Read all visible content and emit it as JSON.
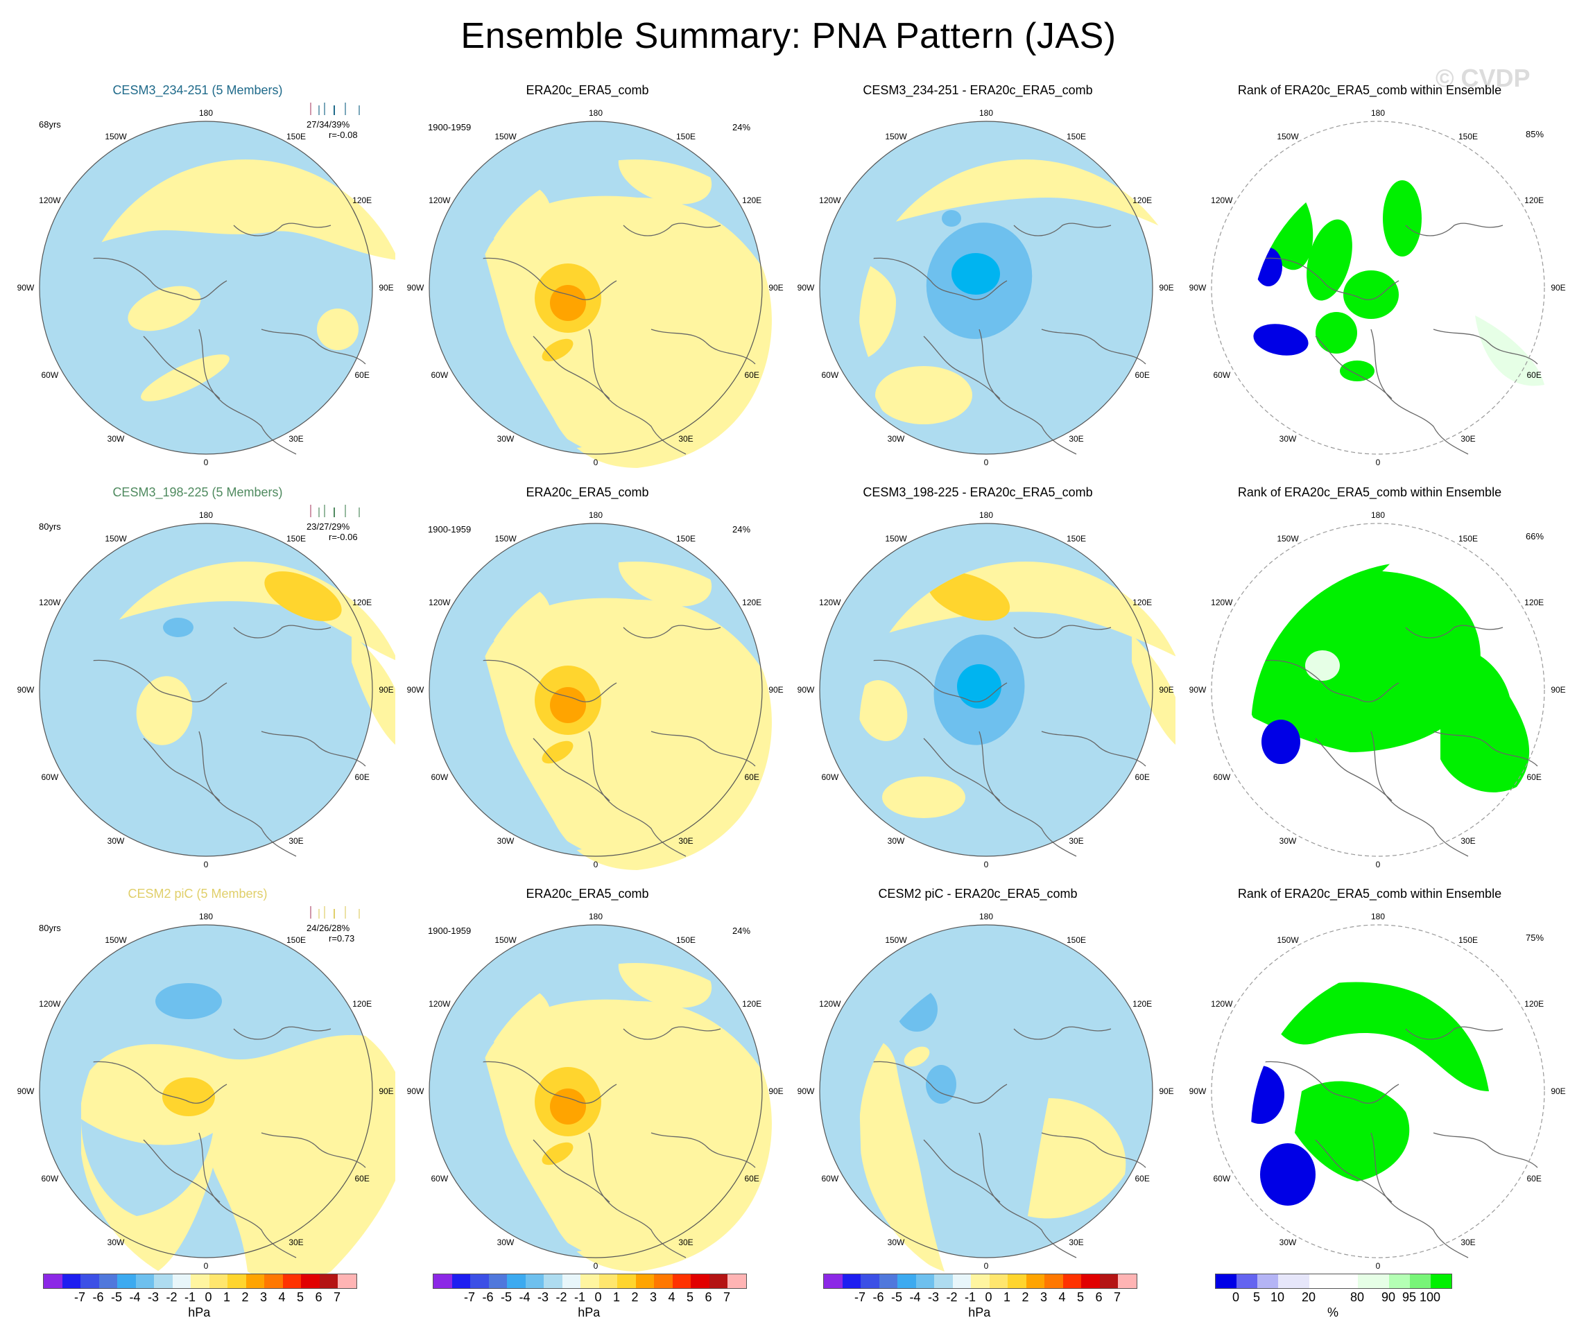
{
  "title": "Ensemble Summary: PNA Pattern (JAS)",
  "watermark": "© CVDP",
  "longitude_labels": [
    "180",
    "150E",
    "120E",
    "90E",
    "60E",
    "30E",
    "0",
    "30W",
    "60W",
    "90W",
    "120W",
    "150W"
  ],
  "rows": [
    {
      "model_title": "CESM3_234-251 (5 Members)",
      "model_title_color": "#1f6a8a",
      "years": "68yrs",
      "stats": "27/34/39%",
      "corr": "r=-0.08",
      "obs_title": "ERA20c_ERA5_comb",
      "obs_period": "1900-1959",
      "obs_pct": "24%",
      "diff_title": "CESM3_234-251 - ERA20c_ERA5_comb",
      "rank_title": "Rank of ERA20c_ERA5_comb within Ensemble",
      "rank_pct": "85%"
    },
    {
      "model_title": "CESM3_198-225 (5 Members)",
      "model_title_color": "#4f8a5f",
      "years": "80yrs",
      "stats": "23/27/29%",
      "corr": "r=-0.06",
      "obs_title": "ERA20c_ERA5_comb",
      "obs_period": "1900-1959",
      "obs_pct": "24%",
      "diff_title": "CESM3_198-225 - ERA20c_ERA5_comb",
      "rank_title": "Rank of ERA20c_ERA5_comb within Ensemble",
      "rank_pct": "66%"
    },
    {
      "model_title": "CESM2 piC (5 Members)",
      "model_title_color": "#e0cf6a",
      "years": "80yrs",
      "stats": "24/26/28%",
      "corr": "r=0.73",
      "obs_title": "ERA20c_ERA5_comb",
      "obs_period": "1900-1959",
      "obs_pct": "24%",
      "diff_title": "CESM2 piC - ERA20c_ERA5_comb",
      "rank_title": "Rank of ERA20c_ERA5_comb within Ensemble",
      "rank_pct": "75%"
    }
  ],
  "colors": {
    "neg_light": "#aedcf0",
    "neg_mid": "#6ec0ee",
    "neg_strong": "#00b4f0",
    "pos_light": "#fff5a0",
    "pos_mid": "#ffd52e",
    "pos_strong": "#ffa400",
    "rank_low": "#0000e6",
    "rank_high": "#00f000",
    "rank_mid_high": "#e6ffe6",
    "coast": "#666666"
  },
  "chart_data": {
    "type": "contour_map_grid",
    "projection": "north polar stereographic",
    "variable": "PNA Pattern sea level pressure anomaly",
    "season": "JAS",
    "units": "hPa",
    "hpa_colorbar": {
      "ticks": [
        "-7",
        "-6",
        "-5",
        "-4",
        "-3",
        "-2",
        "-1",
        "0",
        "1",
        "2",
        "3",
        "4",
        "5",
        "6",
        "7"
      ],
      "units": "hPa",
      "colors": [
        "#8c28e6",
        "#1e1ef0",
        "#3c50e6",
        "#5078dc",
        "#3caaf0",
        "#6ec0ee",
        "#aedcf0",
        "#e8f6fa",
        "#fff5a0",
        "#ffe66e",
        "#ffd52e",
        "#ffa400",
        "#ff7800",
        "#ff3200",
        "#e10000",
        "#b41414",
        "#ffb4b4"
      ]
    },
    "rank_colorbar": {
      "ticks": [
        "0",
        "5",
        "10",
        "20",
        "80",
        "90",
        "95",
        "100"
      ],
      "units": "%",
      "colors": [
        "#0000e6",
        "#6464f0",
        "#b4b4f5",
        "#e6e6fa",
        "#ffffff",
        "#e6ffe6",
        "#b4ffb4",
        "#78f578",
        "#00f000"
      ]
    },
    "rows": [
      {
        "model": "CESM3_234-251 (5 Members)",
        "years": 68,
        "pct_stats": [
          27,
          34,
          39
        ],
        "r": -0.08,
        "obs_pct": 24,
        "rank_pct": 85
      },
      {
        "model": "CESM3_198-225 (5 Members)",
        "years": 80,
        "pct_stats": [
          23,
          27,
          29
        ],
        "r": -0.06,
        "obs_pct": 24,
        "rank_pct": 66
      },
      {
        "model": "CESM2 piC (5 Members)",
        "years": 80,
        "pct_stats": [
          24,
          26,
          28
        ],
        "r": 0.73,
        "obs_pct": 24,
        "rank_pct": 75
      }
    ]
  }
}
